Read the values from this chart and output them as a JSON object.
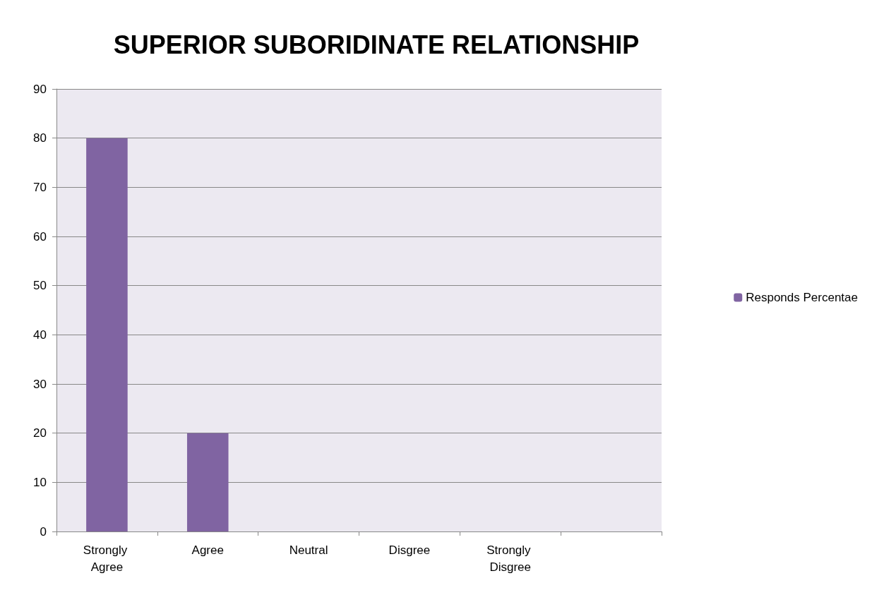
{
  "chart_data": {
    "type": "bar",
    "title": "SUPERIOR SUBORIDINATE RELATIONSHIP",
    "categories": [
      "Strongly Agree",
      "Agree",
      "Neutral",
      "Disgree",
      "Strongly Disgree",
      null
    ],
    "series": [
      {
        "name": "Responds Percentae",
        "color": "#8064a2",
        "values": [
          80,
          20,
          0,
          0,
          0,
          null
        ]
      }
    ],
    "ylim": [
      0,
      90
    ],
    "yticks": [
      0,
      10,
      20,
      30,
      40,
      50,
      60,
      70,
      80,
      90
    ],
    "grid": "y",
    "legend": "right"
  }
}
